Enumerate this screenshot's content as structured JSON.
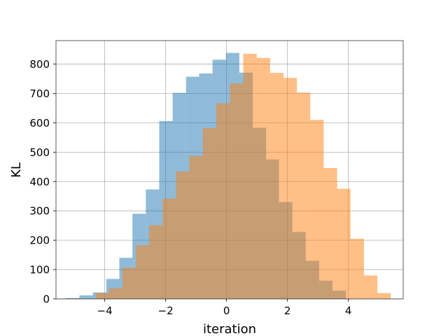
{
  "chart_data": {
    "type": "bar",
    "subtype": "overlapping-histogram",
    "title": "",
    "xlabel": "iteration",
    "ylabel": "KL",
    "xlim": [
      -5.6,
      5.8
    ],
    "ylim": [
      0,
      880
    ],
    "grid": true,
    "x_ticks": [
      -4,
      -2,
      0,
      2,
      4
    ],
    "x_tick_labels": [
      "−4",
      "−2",
      "0",
      "2",
      "4"
    ],
    "y_ticks": [
      0,
      100,
      200,
      300,
      400,
      500,
      600,
      700,
      800
    ],
    "y_tick_labels": [
      "0",
      "100",
      "200",
      "300",
      "400",
      "500",
      "600",
      "700",
      "800"
    ],
    "series": [
      {
        "color": "#1f77b4",
        "alpha": 0.5,
        "bin_edges": [
          -5.28,
          -4.83,
          -4.39,
          -3.95,
          -3.52,
          -3.09,
          -2.65,
          -2.21,
          -1.77,
          -1.33,
          -0.9,
          -0.46,
          -0.02,
          0.42,
          0.86,
          1.3,
          1.72,
          2.16,
          2.6,
          3.04,
          3.48,
          3.92
        ],
        "counts": [
          3,
          12,
          22,
          68,
          140,
          290,
          373,
          606,
          702,
          757,
          768,
          815,
          838,
          771,
          583,
          475,
          330,
          228,
          130,
          62,
          28
        ]
      },
      {
        "color": "#ff7f0e",
        "alpha": 0.5,
        "bin_edges": [
          -4.3,
          -3.86,
          -3.42,
          -2.98,
          -2.54,
          -2.1,
          -1.66,
          -1.22,
          -0.78,
          -0.34,
          0.11,
          0.55,
          0.99,
          1.43,
          1.87,
          2.31,
          2.75,
          3.19,
          3.63,
          4.07,
          4.51,
          4.95,
          5.39
        ],
        "counts": [
          20,
          36,
          106,
          183,
          251,
          342,
          434,
          487,
          582,
          666,
          734,
          835,
          821,
          770,
          753,
          703,
          610,
          446,
          375,
          205,
          80,
          20
        ]
      }
    ]
  }
}
